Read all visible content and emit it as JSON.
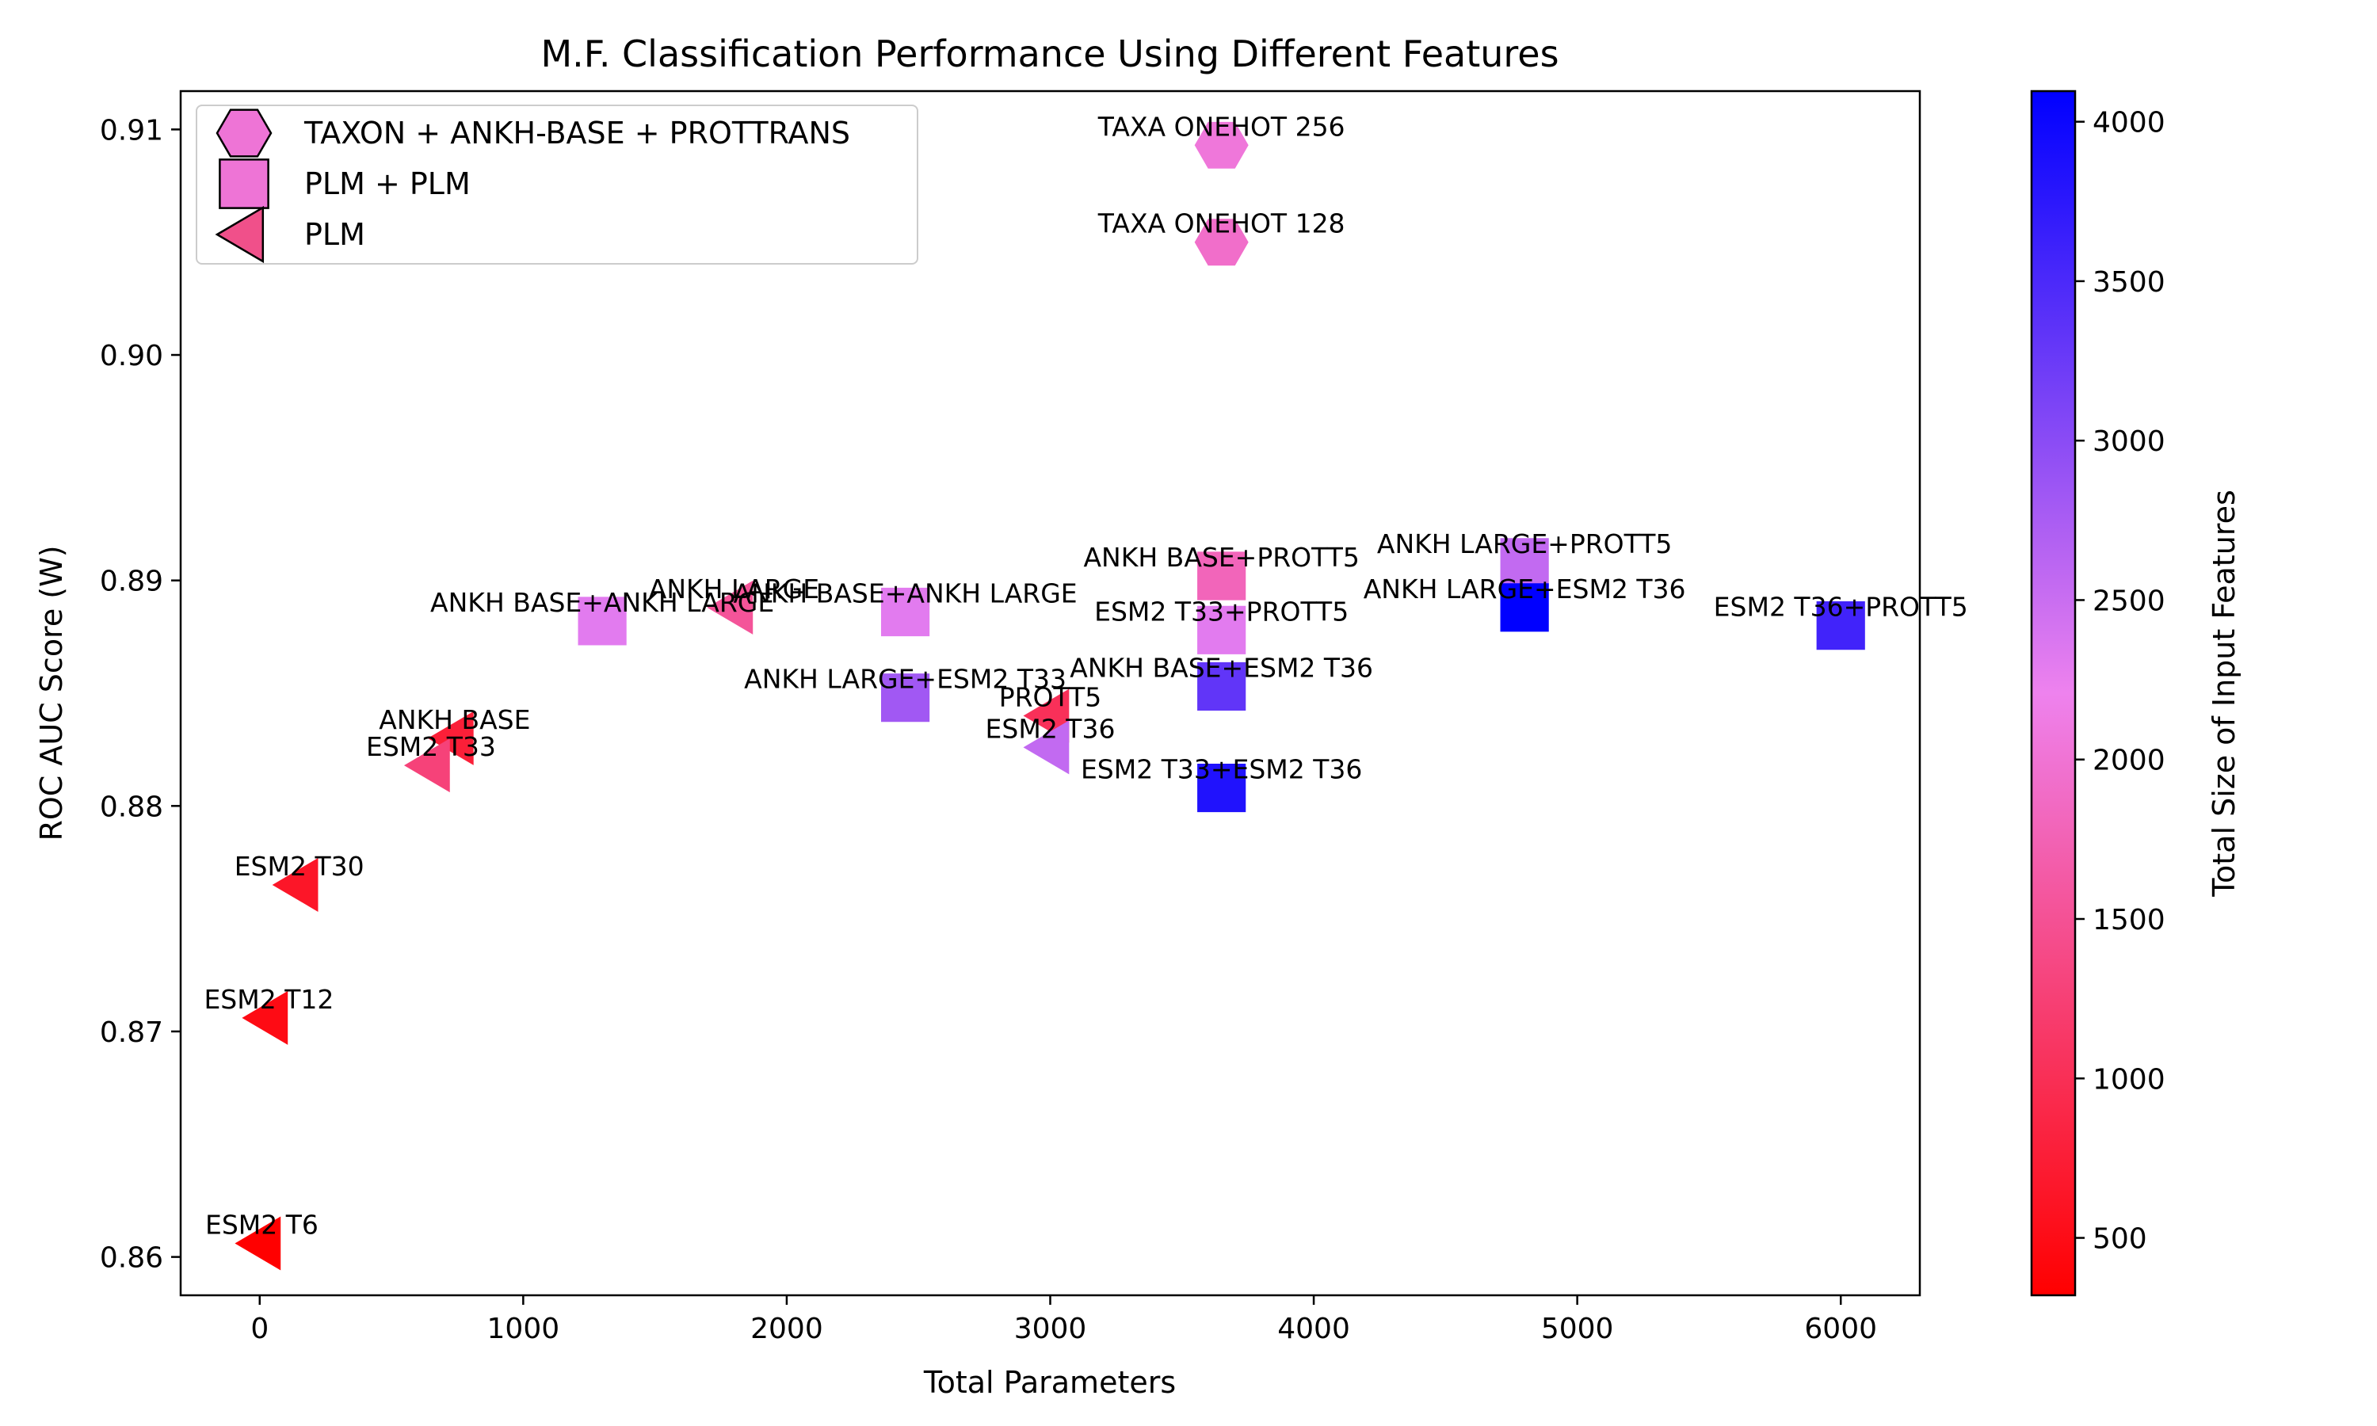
{
  "chart_data": {
    "type": "scatter",
    "title": "M.F. Classification Performance Using Different Features",
    "xlabel": "Total Parameters",
    "ylabel": "ROC AUC Score (W)",
    "xlim": [
      -300,
      6300
    ],
    "ylim": [
      0.8583,
      0.9117
    ],
    "xticks": [
      0,
      1000,
      2000,
      3000,
      4000,
      5000,
      6000
    ],
    "xtick_labels": [
      "0",
      "1000",
      "2000",
      "3000",
      "4000",
      "5000",
      "6000"
    ],
    "yticks": [
      0.86,
      0.87,
      0.88,
      0.89,
      0.9,
      0.91
    ],
    "ytick_labels": [
      "0.86",
      "0.87",
      "0.88",
      "0.89",
      "0.90",
      "0.91"
    ],
    "grid": false,
    "legend": {
      "placement": "top-left",
      "entries": [
        {
          "label": "TAXON + ANKH-BASE + PROTTRANS",
          "marker": "hexagon"
        },
        {
          "label": "PLM + PLM",
          "marker": "square"
        },
        {
          "label": "PLM",
          "marker": "triangle-left"
        }
      ]
    },
    "colorbar": {
      "label": "Total Size of Input Features",
      "range": [
        320,
        4096
      ],
      "ticks": [
        500,
        1000,
        1500,
        2000,
        2500,
        3000,
        3500,
        4000
      ],
      "tick_labels": [
        "500",
        "1000",
        "1500",
        "2000",
        "2500",
        "3000",
        "3500",
        "4000"
      ],
      "colors": [
        "#ff0000",
        "#ee82ee",
        "#0000ff"
      ]
    },
    "points": [
      {
        "label": "ESM2 T6",
        "group": "PLM",
        "x": 8,
        "y": 0.8606,
        "size": 320
      },
      {
        "label": "ESM2 T12",
        "group": "PLM",
        "x": 35,
        "y": 0.8706,
        "size": 480
      },
      {
        "label": "ESM2 T30",
        "group": "PLM",
        "x": 150,
        "y": 0.8765,
        "size": 640
      },
      {
        "label": "ANKH BASE",
        "group": "PLM",
        "x": 740,
        "y": 0.883,
        "size": 768
      },
      {
        "label": "ESM2 T33",
        "group": "PLM",
        "x": 650,
        "y": 0.8818,
        "size": 1280
      },
      {
        "label": "ANKH LARGE",
        "group": "PLM",
        "x": 1800,
        "y": 0.8888,
        "size": 1536
      },
      {
        "label": "PROTT5",
        "group": "PLM",
        "x": 3000,
        "y": 0.884,
        "size": 1024
      },
      {
        "label": "ESM2 T36",
        "group": "PLM",
        "x": 3000,
        "y": 0.8826,
        "size": 2560
      },
      {
        "label": "ANKH BASE+ANKH LARGE",
        "group": "PLM + PLM",
        "x": 1300,
        "y": 0.8882,
        "size": 2304
      },
      {
        "label": "ANKH BASE+ANKH LARGE",
        "group": "PLM + PLM",
        "x": 2450,
        "y": 0.8886,
        "size": 2304
      },
      {
        "label": "ANKH LARGE+ESM2 T33",
        "group": "PLM + PLM",
        "x": 2450,
        "y": 0.8848,
        "size": 2816
      },
      {
        "label": "ANKH BASE+PROTT5",
        "group": "PLM + PLM",
        "x": 3650,
        "y": 0.8902,
        "size": 1792
      },
      {
        "label": "ESM2 T33+PROTT5",
        "group": "PLM + PLM",
        "x": 3650,
        "y": 0.8878,
        "size": 2304
      },
      {
        "label": "ANKH BASE+ESM2 T36",
        "group": "PLM + PLM",
        "x": 3650,
        "y": 0.8853,
        "size": 3328
      },
      {
        "label": "ESM2 T33+ESM2 T36",
        "group": "PLM + PLM",
        "x": 3650,
        "y": 0.8808,
        "size": 3840
      },
      {
        "label": "ANKH LARGE+PROTT5",
        "group": "PLM + PLM",
        "x": 4800,
        "y": 0.8908,
        "size": 2560
      },
      {
        "label": "ANKH LARGE+ESM2 T36",
        "group": "PLM + PLM",
        "x": 4800,
        "y": 0.8888,
        "size": 4096
      },
      {
        "label": "ESM2 T36+PROTT5",
        "group": "PLM + PLM",
        "x": 6000,
        "y": 0.888,
        "size": 3584
      },
      {
        "label": "TAXA ONEHOT 256",
        "group": "TAXON + ANKH-BASE + PROTTRANS",
        "x": 3650,
        "y": 0.9093,
        "size": 2048
      },
      {
        "label": "TAXA ONEHOT 128",
        "group": "TAXON + ANKH-BASE + PROTTRANS",
        "x": 3650,
        "y": 0.905,
        "size": 1920
      }
    ]
  }
}
